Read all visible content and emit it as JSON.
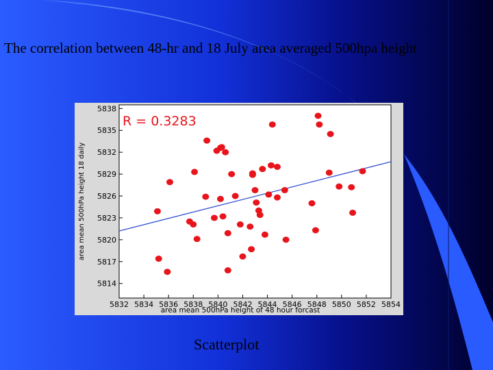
{
  "slide": {
    "title": "The correlation  between  48-hr and 18 July area averaged  500hpa height",
    "caption": "Scatterplot"
  },
  "colors": {
    "background_left": "#2b5cff",
    "background_dark": "#00002a",
    "points": "#e8141c",
    "trendline": "#2f4fd0",
    "frame_bg": "#d9d9d9"
  },
  "chart_data": {
    "type": "scatter",
    "xlabel": "area mean 500hPa height of 48 hour forcast",
    "ylabel": "area mean 500hPa height 18 daily",
    "annotation": "R  =  0.3283",
    "xlim": [
      5832,
      5854
    ],
    "ylim": [
      5812,
      5838.5
    ],
    "xticks": [
      5832,
      5834,
      5836,
      5838,
      5840,
      5842,
      5844,
      5846,
      5848,
      5850,
      5852,
      5854
    ],
    "yticks": [
      5814,
      5817,
      5820,
      5823,
      5826,
      5829,
      5832,
      5835,
      5838
    ],
    "grid": false,
    "trendline": {
      "x": [
        5832,
        5854
      ],
      "y": [
        5821.2,
        5830.7
      ]
    },
    "points": [
      [
        5835.1,
        5823.9
      ],
      [
        5835.2,
        5817.4
      ],
      [
        5835.9,
        5815.6
      ],
      [
        5836.1,
        5827.9
      ],
      [
        5837.7,
        5822.5
      ],
      [
        5838.0,
        5822.1
      ],
      [
        5838.1,
        5829.3
      ],
      [
        5838.3,
        5820.1
      ],
      [
        5839.0,
        5825.9
      ],
      [
        5839.1,
        5833.6
      ],
      [
        5839.7,
        5823.0
      ],
      [
        5839.9,
        5832.2
      ],
      [
        5840.2,
        5832.6
      ],
      [
        5840.3,
        5832.7
      ],
      [
        5840.2,
        5825.6
      ],
      [
        5840.4,
        5823.2
      ],
      [
        5840.6,
        5832.0
      ],
      [
        5840.8,
        5815.8
      ],
      [
        5840.8,
        5820.9
      ],
      [
        5841.1,
        5829.0
      ],
      [
        5841.4,
        5826.0
      ],
      [
        5841.8,
        5822.1
      ],
      [
        5842.0,
        5817.7
      ],
      [
        5842.7,
        5818.7
      ],
      [
        5842.6,
        5821.8
      ],
      [
        5842.8,
        5829.1
      ],
      [
        5842.8,
        5828.9
      ],
      [
        5843.0,
        5826.8
      ],
      [
        5843.1,
        5825.1
      ],
      [
        5843.3,
        5824.0
      ],
      [
        5843.4,
        5823.4
      ],
      [
        5843.6,
        5829.7
      ],
      [
        5843.8,
        5820.7
      ],
      [
        5844.1,
        5826.2
      ],
      [
        5844.3,
        5830.2
      ],
      [
        5844.4,
        5835.8
      ],
      [
        5844.8,
        5825.8
      ],
      [
        5844.8,
        5830.0
      ],
      [
        5845.4,
        5826.8
      ],
      [
        5845.5,
        5820.0
      ],
      [
        5847.6,
        5825.0
      ],
      [
        5847.9,
        5821.3
      ],
      [
        5848.1,
        5837.0
      ],
      [
        5848.2,
        5835.8
      ],
      [
        5849.0,
        5829.2
      ],
      [
        5849.1,
        5834.5
      ],
      [
        5849.8,
        5827.3
      ],
      [
        5850.8,
        5827.2
      ],
      [
        5850.9,
        5823.7
      ],
      [
        5851.7,
        5829.4
      ]
    ]
  }
}
